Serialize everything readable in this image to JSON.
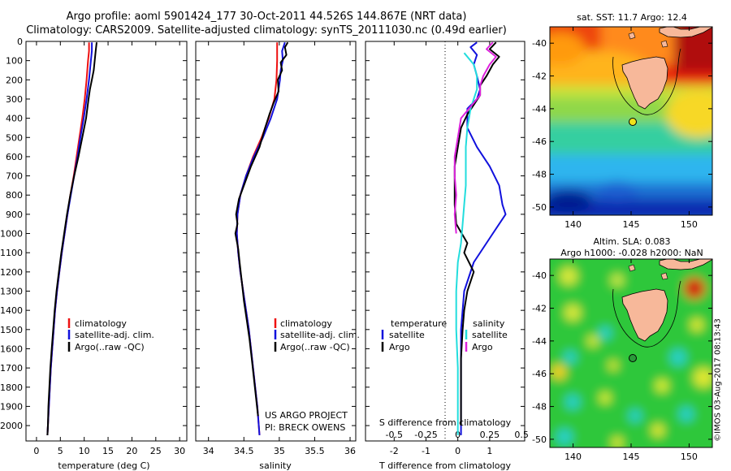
{
  "header": {
    "title_line1": "Argo profile: aoml 5901424_177 30-Oct-2011 44.526S 144.867E (NRT data)",
    "title_line2": "Climatology: CARS2009. Satellite-adjusted climatology: synTS_20111030.nc (0.49d earlier)"
  },
  "colors": {
    "climatology": "#ee1111",
    "satellite": "#1111dd",
    "argo": "#000000",
    "sat_salinity": "#22dddd",
    "argo_salinity": "#dd22dd",
    "land": "#f7b89a"
  },
  "chart_data": [
    {
      "type": "line",
      "id": "temperature",
      "xlabel": "temperature (deg C)",
      "xlim": [
        -2.2,
        31.5
      ],
      "ylim": [
        2080,
        0
      ],
      "xticks": [
        0,
        5,
        10,
        15,
        20,
        25,
        30
      ],
      "yticks": [
        0,
        100,
        200,
        300,
        400,
        500,
        600,
        700,
        800,
        900,
        1000,
        1100,
        1200,
        1300,
        1400,
        1500,
        1600,
        1700,
        1800,
        1900,
        2000
      ],
      "legend": [
        "climatology",
        "satellite-adj. clim.",
        "Argo(..raw -QC)"
      ],
      "series": [
        {
          "name": "climatology",
          "color": "#ee1111",
          "points": [
            [
              11.0,
              5
            ],
            [
              11.0,
              50
            ],
            [
              10.8,
              100
            ],
            [
              10.5,
              200
            ],
            [
              10.1,
              300
            ],
            [
              9.6,
              400
            ],
            [
              9.0,
              500
            ],
            [
              8.4,
              600
            ],
            [
              7.8,
              700
            ],
            [
              7.1,
              800
            ],
            [
              6.5,
              900
            ],
            [
              5.9,
              1000
            ],
            [
              5.3,
              1100
            ],
            [
              4.8,
              1200
            ],
            [
              4.3,
              1300
            ],
            [
              3.9,
              1400
            ],
            [
              3.6,
              1500
            ],
            [
              3.3,
              1600
            ],
            [
              3.0,
              1700
            ],
            [
              2.8,
              1800
            ],
            [
              2.6,
              1900
            ],
            [
              2.4,
              2000
            ],
            [
              2.3,
              2050
            ]
          ]
        },
        {
          "name": "satellite-adj. clim.",
          "color": "#1111dd",
          "points": [
            [
              11.6,
              5
            ],
            [
              11.6,
              50
            ],
            [
              11.4,
              100
            ],
            [
              11.0,
              200
            ],
            [
              10.5,
              300
            ],
            [
              9.9,
              400
            ],
            [
              9.2,
              500
            ],
            [
              8.6,
              600
            ],
            [
              7.9,
              700
            ],
            [
              7.2,
              800
            ],
            [
              6.5,
              900
            ],
            [
              5.9,
              1000
            ],
            [
              5.3,
              1100
            ],
            [
              4.8,
              1200
            ],
            [
              4.3,
              1300
            ],
            [
              3.9,
              1400
            ],
            [
              3.6,
              1500
            ],
            [
              3.3,
              1600
            ],
            [
              3.0,
              1700
            ],
            [
              2.8,
              1800
            ],
            [
              2.6,
              1900
            ],
            [
              2.4,
              2000
            ],
            [
              2.3,
              2050
            ]
          ]
        },
        {
          "name": "Argo(..raw -QC)",
          "color": "#000000",
          "points": [
            [
              12.6,
              5
            ],
            [
              12.4,
              50
            ],
            [
              12.2,
              100
            ],
            [
              12.0,
              150
            ],
            [
              11.6,
              200
            ],
            [
              11.2,
              250
            ],
            [
              10.9,
              300
            ],
            [
              10.4,
              400
            ],
            [
              9.6,
              500
            ],
            [
              8.8,
              600
            ],
            [
              7.9,
              700
            ],
            [
              7.1,
              800
            ],
            [
              6.4,
              900
            ],
            [
              5.8,
              1000
            ],
            [
              5.2,
              1100
            ],
            [
              4.7,
              1200
            ],
            [
              4.2,
              1300
            ],
            [
              3.8,
              1400
            ],
            [
              3.5,
              1500
            ],
            [
              3.2,
              1600
            ],
            [
              2.9,
              1700
            ],
            [
              2.7,
              1800
            ],
            [
              2.5,
              1900
            ],
            [
              2.4,
              2000
            ],
            [
              2.3,
              2050
            ]
          ]
        }
      ]
    },
    {
      "type": "line",
      "id": "salinity",
      "xlabel": "salinity",
      "xlim": [
        33.82,
        36.08
      ],
      "ylim": [
        2080,
        0
      ],
      "xticks": [
        34,
        34.5,
        35,
        35.5,
        36
      ],
      "xtick_labels": [
        "34",
        "34.5",
        "35",
        "35.5",
        "36"
      ],
      "legend": [
        "climatology",
        "satellite-adj. clim.",
        "Argo(..raw -QC)"
      ],
      "annotation": [
        "US ARGO PROJECT",
        "PI: BRECK OWENS"
      ],
      "series": [
        {
          "name": "climatology",
          "color": "#ee1111",
          "points": [
            [
              34.97,
              5
            ],
            [
              34.97,
              50
            ],
            [
              34.97,
              100
            ],
            [
              34.96,
              200
            ],
            [
              34.93,
              300
            ],
            [
              34.85,
              400
            ],
            [
              34.75,
              500
            ],
            [
              34.63,
              600
            ],
            [
              34.53,
              700
            ],
            [
              34.45,
              800
            ],
            [
              34.41,
              900
            ],
            [
              34.4,
              1000
            ],
            [
              34.42,
              1100
            ],
            [
              34.45,
              1200
            ],
            [
              34.49,
              1300
            ],
            [
              34.53,
              1400
            ],
            [
              34.57,
              1500
            ],
            [
              34.6,
              1600
            ],
            [
              34.63,
              1700
            ],
            [
              34.66,
              1800
            ],
            [
              34.69,
              1900
            ],
            [
              34.71,
              2000
            ],
            [
              34.72,
              2050
            ]
          ]
        },
        {
          "name": "satellite-adj. clim.",
          "color": "#1111dd",
          "points": [
            [
              35.08,
              5
            ],
            [
              35.04,
              50
            ],
            [
              35.05,
              100
            ],
            [
              35.02,
              150
            ],
            [
              35.01,
              200
            ],
            [
              34.97,
              300
            ],
            [
              34.88,
              400
            ],
            [
              34.77,
              500
            ],
            [
              34.64,
              600
            ],
            [
              34.53,
              700
            ],
            [
              34.45,
              800
            ],
            [
              34.41,
              900
            ],
            [
              34.4,
              1000
            ],
            [
              34.42,
              1100
            ],
            [
              34.45,
              1200
            ],
            [
              34.49,
              1300
            ],
            [
              34.53,
              1400
            ],
            [
              34.57,
              1500
            ],
            [
              34.6,
              1600
            ],
            [
              34.63,
              1700
            ],
            [
              34.66,
              1800
            ],
            [
              34.69,
              1900
            ],
            [
              34.71,
              2000
            ],
            [
              34.72,
              2050
            ]
          ]
        },
        {
          "name": "Argo(..raw -QC)",
          "color": "#000000",
          "points": [
            [
              35.12,
              5
            ],
            [
              35.08,
              30
            ],
            [
              35.1,
              70
            ],
            [
              35.02,
              110
            ],
            [
              35.04,
              150
            ],
            [
              34.98,
              200
            ],
            [
              34.99,
              260
            ],
            [
              34.92,
              320
            ],
            [
              34.86,
              380
            ],
            [
              34.8,
              450
            ],
            [
              34.72,
              550
            ],
            [
              34.6,
              650
            ],
            [
              34.5,
              750
            ],
            [
              34.43,
              820
            ],
            [
              34.39,
              900
            ],
            [
              34.41,
              950
            ],
            [
              34.38,
              1000
            ],
            [
              34.42,
              1080
            ],
            [
              34.44,
              1150
            ],
            [
              34.47,
              1250
            ],
            [
              34.5,
              1350
            ],
            [
              34.54,
              1450
            ],
            [
              34.58,
              1550
            ],
            [
              34.61,
              1650
            ],
            [
              34.64,
              1750
            ],
            [
              34.67,
              1850
            ],
            [
              34.7,
              1950
            ]
          ]
        }
      ]
    },
    {
      "type": "line",
      "id": "difference",
      "xlabel": "T difference from climatology",
      "top_axis_label": "S difference from climatology",
      "xlim": [
        -2.9,
        2.1
      ],
      "ylim": [
        2080,
        0
      ],
      "xticks": [
        -2,
        -1,
        0,
        1
      ],
      "xtick_labels": [
        "-2",
        "-1",
        "0",
        "1"
      ],
      "top_ticks": [
        -0.5,
        -0.25,
        0,
        0.25,
        0.5
      ],
      "top_tick_labels": [
        "-0.5",
        "-0.25",
        "0",
        "0.25",
        "0.5"
      ],
      "legend_headers": [
        "temperature",
        "salinity"
      ],
      "legend": [
        "satellite",
        "Argo",
        "satellite",
        "Argo"
      ],
      "series": [
        {
          "name": "satellite",
          "group": "temperature",
          "color": "#1111dd",
          "points": [
            [
              0.6,
              5
            ],
            [
              0.4,
              30
            ],
            [
              0.6,
              70
            ],
            [
              0.5,
              120
            ],
            [
              0.6,
              180
            ],
            [
              0.7,
              250
            ],
            [
              0.6,
              300
            ],
            [
              0.3,
              350
            ],
            [
              0.3,
              450
            ],
            [
              0.6,
              550
            ],
            [
              1.0,
              650
            ],
            [
              1.3,
              750
            ],
            [
              1.4,
              850
            ],
            [
              1.5,
              900
            ],
            [
              1.1,
              1000
            ],
            [
              0.5,
              1150
            ],
            [
              0.2,
              1300
            ],
            [
              0.1,
              1500
            ],
            [
              0.1,
              1800
            ],
            [
              0.1,
              2050
            ]
          ]
        },
        {
          "name": "Argo",
          "group": "temperature",
          "color": "#000000",
          "points": [
            [
              1.2,
              5
            ],
            [
              1.0,
              40
            ],
            [
              1.3,
              80
            ],
            [
              1.1,
              120
            ],
            [
              0.9,
              180
            ],
            [
              0.7,
              230
            ],
            [
              0.7,
              280
            ],
            [
              0.5,
              330
            ],
            [
              0.3,
              380
            ],
            [
              0.1,
              450
            ],
            [
              0.0,
              550
            ],
            [
              -0.1,
              650
            ],
            [
              -0.1,
              750
            ],
            [
              -0.1,
              850
            ],
            [
              -0.05,
              950
            ],
            [
              0.3,
              1050
            ],
            [
              0.2,
              1100
            ],
            [
              0.5,
              1200
            ],
            [
              0.3,
              1300
            ],
            [
              0.2,
              1400
            ],
            [
              0.15,
              1500
            ],
            [
              0.1,
              1650
            ],
            [
              0.1,
              1800
            ],
            [
              0.1,
              2000
            ]
          ]
        },
        {
          "name": "satellite",
          "group": "salinity",
          "color": "#22dddd",
          "points": [
            [
              0.2,
              60
            ],
            [
              0.5,
              120
            ],
            [
              0.6,
              180
            ],
            [
              0.6,
              250
            ],
            [
              0.4,
              350
            ],
            [
              0.3,
              450
            ],
            [
              0.25,
              550
            ],
            [
              0.25,
              650
            ],
            [
              0.25,
              750
            ],
            [
              0.2,
              850
            ],
            [
              0.15,
              950
            ],
            [
              0.1,
              1050
            ],
            [
              0.0,
              1150
            ],
            [
              -0.05,
              1300
            ],
            [
              -0.05,
              1500
            ],
            [
              0.0,
              1700
            ],
            [
              0.0,
              1900
            ],
            [
              0.0,
              2050
            ]
          ]
        },
        {
          "name": "Argo",
          "group": "salinity",
          "color": "#dd22dd",
          "points": [
            [
              1.1,
              5
            ],
            [
              0.9,
              40
            ],
            [
              1.2,
              80
            ],
            [
              1.0,
              120
            ],
            [
              0.8,
              180
            ],
            [
              0.7,
              230
            ],
            [
              0.7,
              280
            ],
            [
              0.4,
              340
            ],
            [
              0.1,
              400
            ],
            [
              0.0,
              500
            ],
            [
              -0.1,
              600
            ],
            [
              -0.1,
              700
            ],
            [
              -0.05,
              800
            ],
            [
              -0.1,
              900
            ],
            [
              -0.05,
              1000
            ]
          ]
        }
      ]
    }
  ],
  "maps": {
    "sst": {
      "title": "sat. SST: 11.7 Argo: 12.4",
      "lat_ticks": [
        "-40",
        "-42",
        "-44",
        "-46",
        "-48",
        "-50"
      ],
      "lon_ticks": [
        "140",
        "145",
        "150"
      ]
    },
    "sla": {
      "title_line1": "Altim. SLA: 0.083",
      "title_line2": "Argo h1000: -0.028 h2000: NaN",
      "lat_ticks": [
        "-40",
        "-42",
        "-44",
        "-46",
        "-48",
        "-50"
      ],
      "lon_ticks": [
        "140",
        "145",
        "150"
      ]
    }
  },
  "footer": {
    "credit": "©IMOS 03-Aug-2017 08:13:43"
  }
}
